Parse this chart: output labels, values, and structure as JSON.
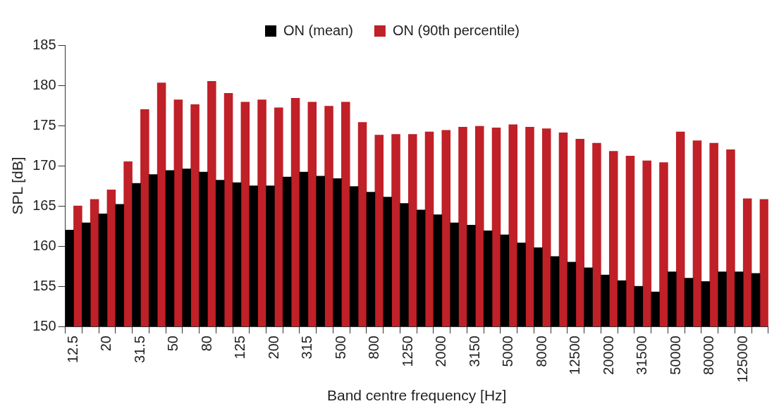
{
  "chart_data": {
    "type": "bar",
    "xlabel": "Band centre frequency [Hz]",
    "ylabel": "SPL [dB]",
    "categories": [
      "12.5",
      null,
      "20",
      null,
      "31.5",
      null,
      "50",
      null,
      "80",
      null,
      "125",
      null,
      "200",
      null,
      "315",
      null,
      "500",
      null,
      "800",
      null,
      "1250",
      null,
      "2000",
      null,
      "3150",
      null,
      "5000",
      null,
      "8000",
      null,
      "12500",
      null,
      "20000",
      null,
      "31500",
      null,
      "50000",
      null,
      "80000",
      null,
      "125000",
      null
    ],
    "series": [
      {
        "name": "ON (mean)",
        "color": "#000000",
        "values": [
          162.0,
          162.9,
          164.0,
          165.2,
          167.8,
          168.9,
          169.4,
          169.6,
          169.2,
          168.2,
          167.9,
          167.5,
          167.5,
          168.6,
          169.2,
          168.7,
          168.4,
          167.4,
          166.7,
          166.1,
          165.3,
          164.5,
          163.9,
          162.9,
          162.6,
          161.9,
          161.4,
          160.4,
          159.8,
          158.7,
          158.0,
          157.3,
          156.4,
          155.7,
          155.0,
          154.3,
          156.8,
          156.0,
          155.6,
          156.8,
          156.8,
          156.6
        ]
      },
      {
        "name": "ON (90th percentile)",
        "color": "#c02027",
        "values": [
          165.0,
          165.8,
          167.0,
          170.5,
          177.0,
          180.3,
          178.2,
          177.6,
          180.5,
          179.0,
          177.9,
          178.2,
          177.2,
          178.4,
          177.9,
          177.4,
          177.9,
          175.4,
          173.8,
          173.9,
          173.9,
          174.2,
          174.4,
          174.8,
          174.9,
          174.7,
          175.1,
          174.8,
          174.6,
          174.1,
          173.3,
          172.8,
          171.8,
          171.2,
          170.6,
          170.4,
          174.2,
          173.1,
          172.8,
          172.0,
          165.9,
          165.8
        ]
      }
    ],
    "ylim": [
      150,
      185
    ],
    "yticks": [
      150,
      155,
      160,
      165,
      170,
      175,
      180,
      185
    ],
    "grid": false,
    "legend": "top"
  }
}
